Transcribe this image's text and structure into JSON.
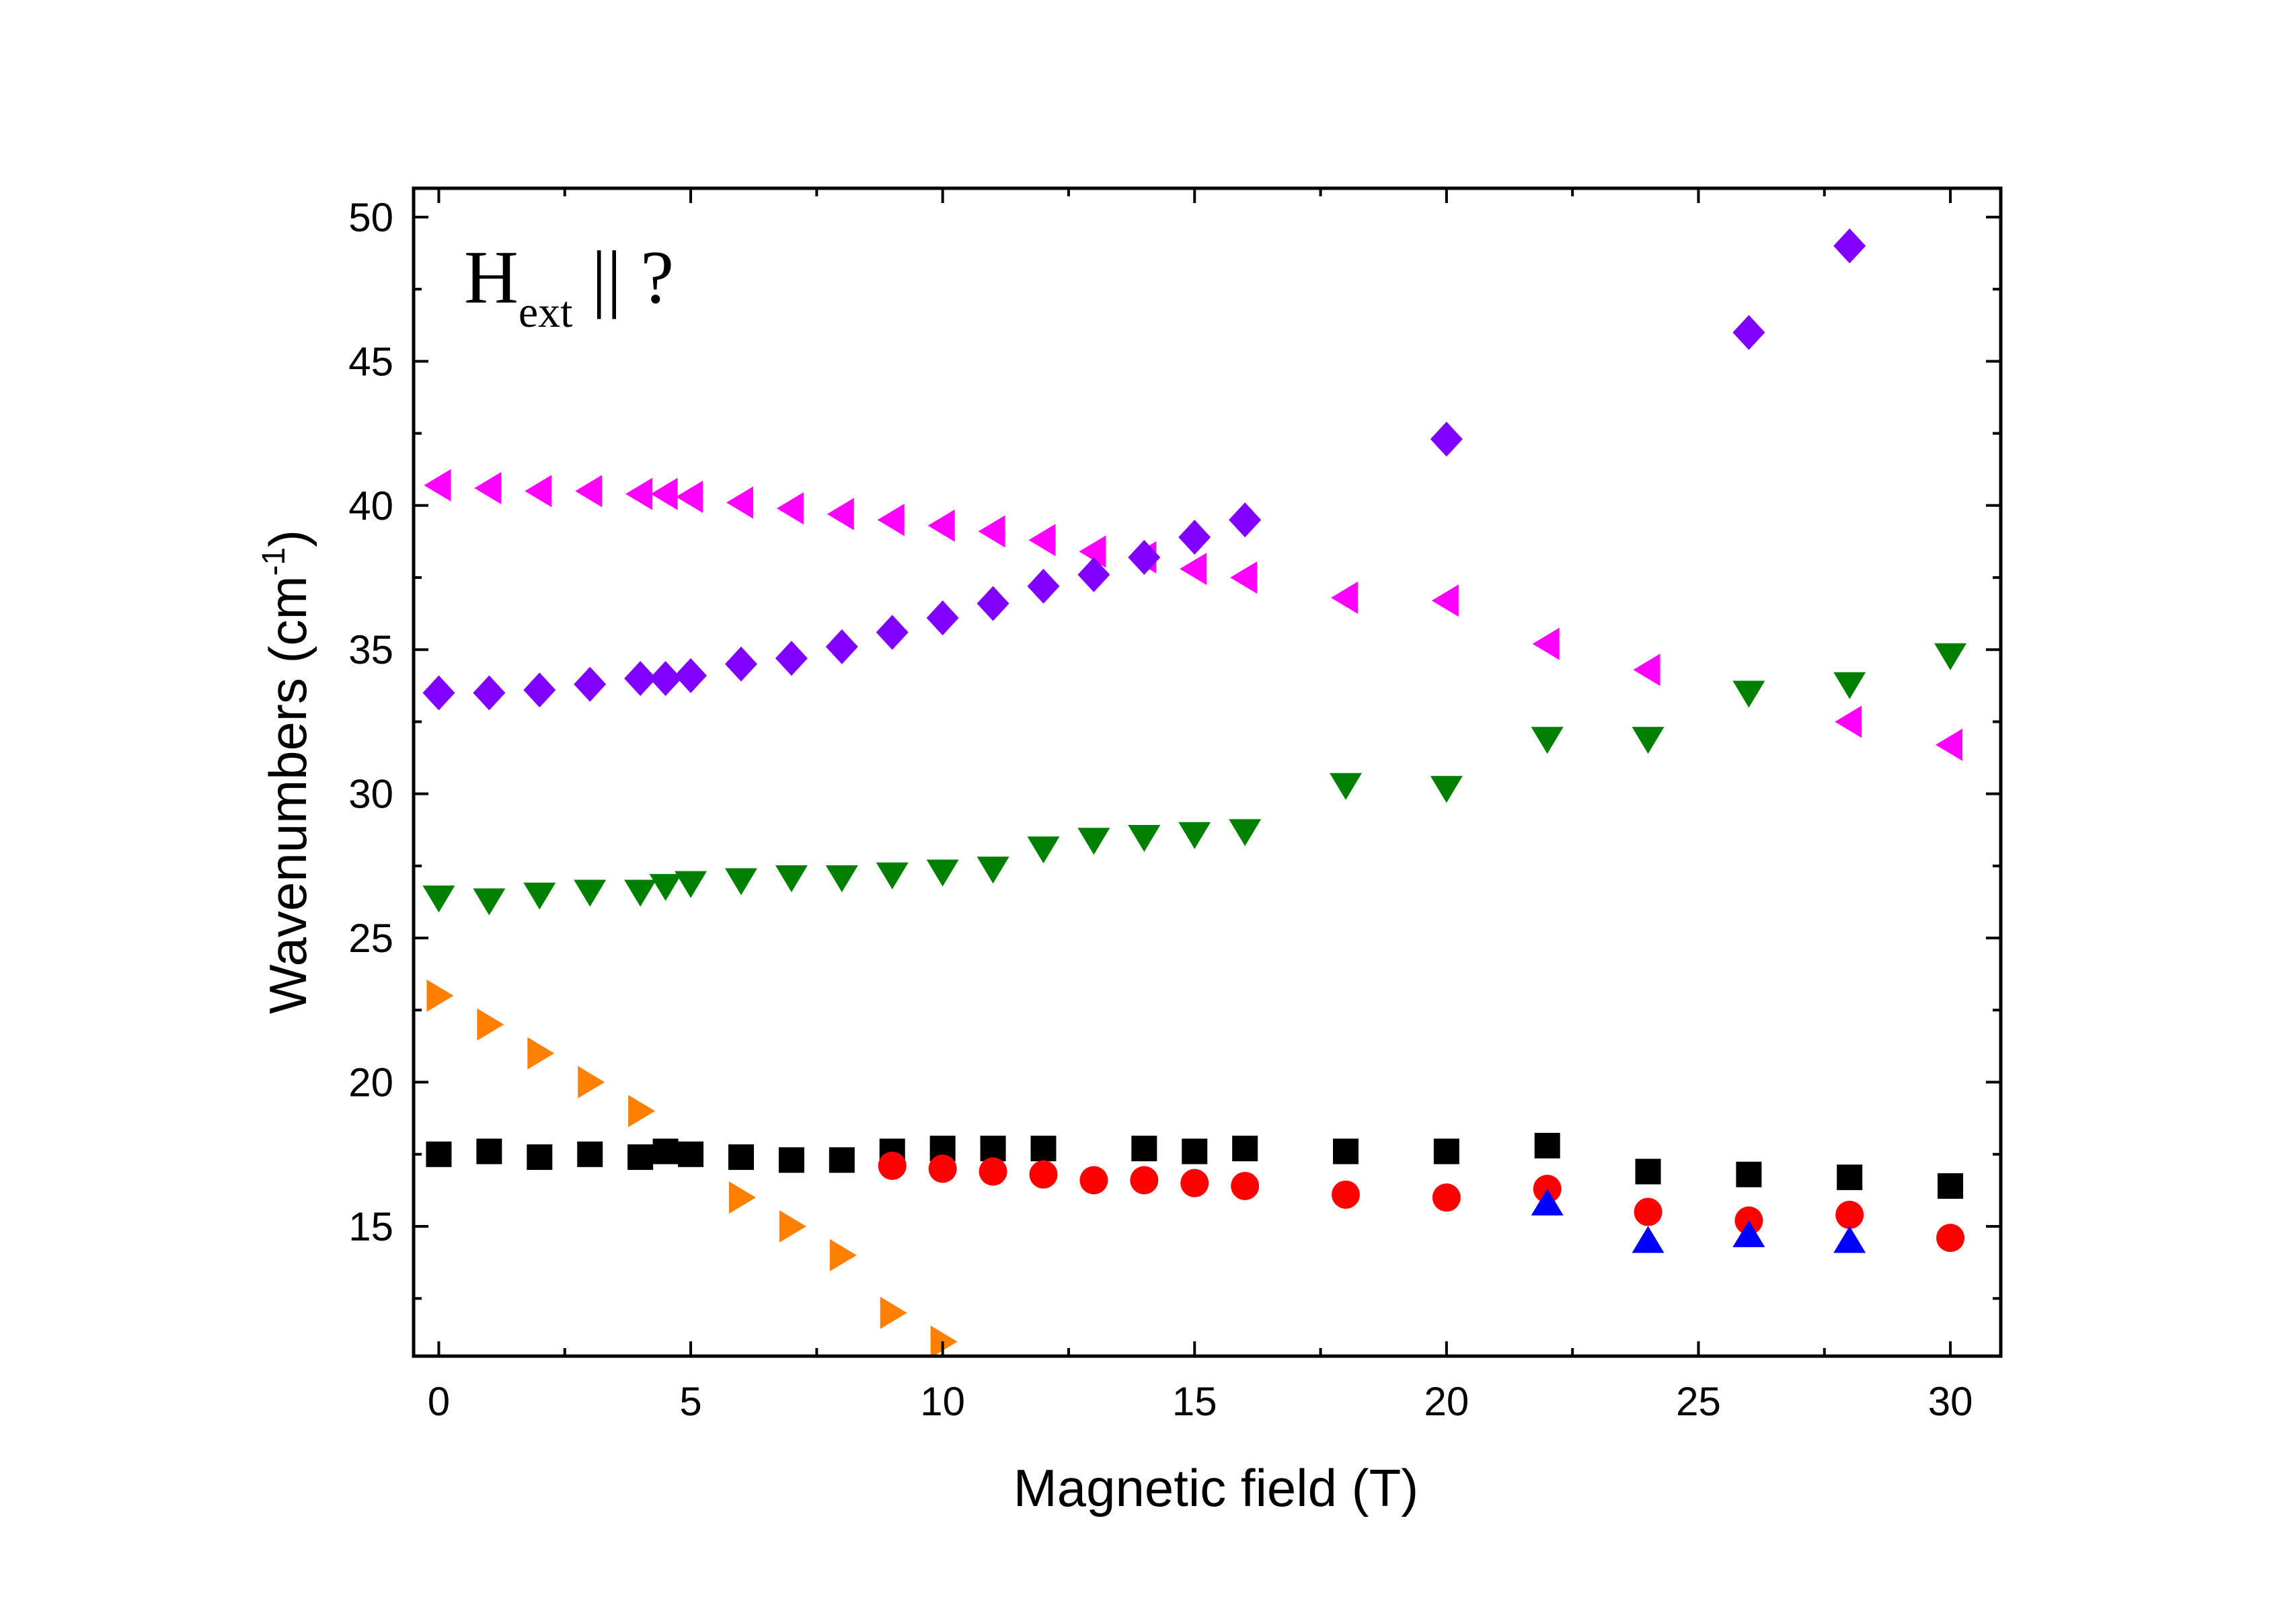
{
  "chart_data": {
    "type": "scatter",
    "xlabel": "Magnetic field (T)",
    "ylabel": "Wavenumbers (cm",
    "ylabel_sup": "-1",
    "ylabel_close": ")",
    "annotation": {
      "main": "H",
      "sub": "ext",
      "rest": " || ?"
    },
    "xlim": [
      -0.5,
      31
    ],
    "ylim": [
      10.5,
      51
    ],
    "x_ticks": [
      "0",
      "5",
      "10",
      "15",
      "20",
      "25",
      "30"
    ],
    "y_ticks": [
      "15",
      "20",
      "25",
      "30",
      "35",
      "40",
      "45",
      "50"
    ],
    "grid": false,
    "legend": "none",
    "series": [
      {
        "marker": "square",
        "color": "#000000",
        "points": [
          [
            0,
            17.5
          ],
          [
            1,
            17.6
          ],
          [
            2,
            17.4
          ],
          [
            3,
            17.5
          ],
          [
            4,
            17.4
          ],
          [
            4.5,
            17.6
          ],
          [
            5,
            17.5
          ],
          [
            6,
            17.4
          ],
          [
            7,
            17.3
          ],
          [
            8,
            17.3
          ],
          [
            9,
            17.6
          ],
          [
            10,
            17.7
          ],
          [
            11,
            17.7
          ],
          [
            12,
            17.7
          ],
          [
            14,
            17.7
          ],
          [
            15,
            17.6
          ],
          [
            16,
            17.7
          ],
          [
            18,
            17.6
          ],
          [
            20,
            17.6
          ],
          [
            22,
            17.8
          ],
          [
            24,
            16.9
          ],
          [
            26,
            16.8
          ],
          [
            28,
            16.7
          ],
          [
            30,
            16.4
          ]
        ]
      },
      {
        "marker": "circle",
        "color": "#ff0000",
        "points": [
          [
            9,
            17.1
          ],
          [
            10,
            17.0
          ],
          [
            11,
            16.9
          ],
          [
            12,
            16.8
          ],
          [
            13,
            16.6
          ],
          [
            14,
            16.6
          ],
          [
            15,
            16.5
          ],
          [
            16,
            16.4
          ],
          [
            18,
            16.1
          ],
          [
            20,
            16.0
          ],
          [
            22,
            16.3
          ],
          [
            24,
            15.5
          ],
          [
            26,
            15.2
          ],
          [
            28,
            15.4
          ],
          [
            30,
            14.6
          ]
        ]
      },
      {
        "marker": "triangle-up",
        "color": "#0000ff",
        "points": [
          [
            22,
            15.8
          ],
          [
            24,
            14.5
          ],
          [
            26,
            14.7
          ],
          [
            28,
            14.5
          ]
        ]
      },
      {
        "marker": "triangle-down",
        "color": "#008000",
        "points": [
          [
            0,
            26.4
          ],
          [
            1,
            26.3
          ],
          [
            2,
            26.5
          ],
          [
            3,
            26.6
          ],
          [
            4,
            26.6
          ],
          [
            4.5,
            26.8
          ],
          [
            5,
            26.9
          ],
          [
            6,
            27.0
          ],
          [
            7,
            27.1
          ],
          [
            8,
            27.1
          ],
          [
            9,
            27.2
          ],
          [
            10,
            27.3
          ],
          [
            11,
            27.4
          ],
          [
            12,
            28.1
          ],
          [
            13,
            28.4
          ],
          [
            14,
            28.5
          ],
          [
            15,
            28.6
          ],
          [
            16,
            28.7
          ],
          [
            18,
            30.3
          ],
          [
            20,
            30.2
          ],
          [
            22,
            31.9
          ],
          [
            24,
            31.9
          ],
          [
            26,
            33.5
          ],
          [
            28,
            33.8
          ],
          [
            30,
            34.8
          ]
        ]
      },
      {
        "marker": "triangle-left",
        "color": "#ff00ff",
        "points": [
          [
            0,
            40.7
          ],
          [
            1,
            40.6
          ],
          [
            2,
            40.5
          ],
          [
            3,
            40.5
          ],
          [
            4,
            40.4
          ],
          [
            4.5,
            40.4
          ],
          [
            5,
            40.3
          ],
          [
            6,
            40.1
          ],
          [
            7,
            39.9
          ],
          [
            8,
            39.7
          ],
          [
            9,
            39.5
          ],
          [
            10,
            39.3
          ],
          [
            11,
            39.1
          ],
          [
            12,
            38.8
          ],
          [
            13,
            38.4
          ],
          [
            14,
            38.2
          ],
          [
            15,
            37.8
          ],
          [
            16,
            37.5
          ],
          [
            18,
            36.8
          ],
          [
            20,
            36.7
          ],
          [
            22,
            35.2
          ],
          [
            24,
            34.3
          ],
          [
            28,
            32.5
          ],
          [
            30,
            31.7
          ]
        ]
      },
      {
        "marker": "diamond",
        "color": "#8000ff",
        "points": [
          [
            0,
            33.5
          ],
          [
            1,
            33.5
          ],
          [
            2,
            33.6
          ],
          [
            3,
            33.8
          ],
          [
            4,
            34.0
          ],
          [
            4.5,
            34.0
          ],
          [
            5,
            34.1
          ],
          [
            6,
            34.5
          ],
          [
            7,
            34.7
          ],
          [
            8,
            35.1
          ],
          [
            9,
            35.6
          ],
          [
            10,
            36.1
          ],
          [
            11,
            36.6
          ],
          [
            12,
            37.2
          ],
          [
            13,
            37.6
          ],
          [
            14,
            38.2
          ],
          [
            15,
            38.9
          ],
          [
            16,
            39.5
          ],
          [
            20,
            42.3
          ],
          [
            26,
            46.0
          ],
          [
            28,
            49.0
          ]
        ]
      },
      {
        "marker": "triangle-right",
        "color": "#ff8000",
        "points": [
          [
            0,
            23.0
          ],
          [
            1,
            22.0
          ],
          [
            2,
            21.0
          ],
          [
            3,
            20.0
          ],
          [
            4,
            19.0
          ],
          [
            6,
            16.0
          ],
          [
            7,
            15.0
          ],
          [
            8,
            14.0
          ],
          [
            9,
            12.0
          ],
          [
            10,
            11.0
          ]
        ]
      }
    ]
  }
}
